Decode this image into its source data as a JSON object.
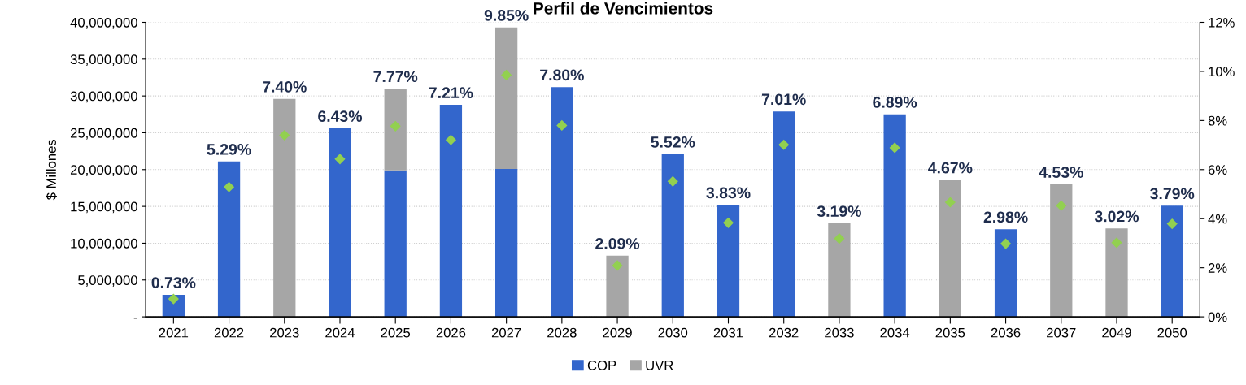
{
  "chart_data": {
    "type": "bar",
    "title": "Perfil de Vencimientos",
    "ylabel": "$ Millones",
    "stacked": true,
    "grid": "y",
    "legend": "bottom",
    "categories": [
      "2021",
      "2022",
      "2023",
      "2024",
      "2025",
      "2026",
      "2027",
      "2028",
      "2029",
      "2030",
      "2031",
      "2032",
      "2033",
      "2034",
      "2035",
      "2036",
      "2037",
      "2049",
      "2050"
    ],
    "ylim": [
      0,
      40000000
    ],
    "yticks": [
      {
        "value": 0,
        "label": "-"
      },
      {
        "value": 5000000,
        "label": "5,000,000"
      },
      {
        "value": 10000000,
        "label": "10,000,000"
      },
      {
        "value": 15000000,
        "label": "15,000,000"
      },
      {
        "value": 20000000,
        "label": "20,000,000"
      },
      {
        "value": 25000000,
        "label": "25,000,000"
      },
      {
        "value": 30000000,
        "label": "30,000,000"
      },
      {
        "value": 35000000,
        "label": "35,000,000"
      },
      {
        "value": 40000000,
        "label": "40,000,000"
      }
    ],
    "y2lim": [
      0,
      12
    ],
    "y2ticks": [
      {
        "value": 0,
        "label": "0%"
      },
      {
        "value": 2,
        "label": "2%"
      },
      {
        "value": 4,
        "label": "4%"
      },
      {
        "value": 6,
        "label": "6%"
      },
      {
        "value": 8,
        "label": "8%"
      },
      {
        "value": 10,
        "label": "10%"
      },
      {
        "value": 12,
        "label": "12%"
      }
    ],
    "series": [
      {
        "name": "COP",
        "color": "#3366cc",
        "values": [
          3000000,
          21100000,
          null,
          25600000,
          19900000,
          28800000,
          20100000,
          31200000,
          null,
          22100000,
          15200000,
          27900000,
          null,
          27500000,
          null,
          11900000,
          null,
          null,
          15100000
        ]
      },
      {
        "name": "UVR",
        "color": "#a6a6a6",
        "values": [
          null,
          null,
          29600000,
          null,
          11100000,
          null,
          19200000,
          null,
          8300000,
          null,
          null,
          null,
          12700000,
          null,
          18600000,
          null,
          18000000,
          12000000,
          null
        ]
      },
      {
        "type": "scatter",
        "axis": "y2",
        "marker": "diamond",
        "color": "#92d050",
        "values": [
          0.73,
          5.29,
          7.4,
          6.43,
          7.77,
          7.21,
          9.85,
          7.8,
          2.09,
          5.52,
          3.83,
          7.01,
          3.19,
          6.89,
          4.67,
          2.98,
          4.53,
          3.02,
          3.79
        ],
        "value_labels": [
          "0.73%",
          "5.29%",
          "7.40%",
          "6.43%",
          "7.77%",
          "7.21%",
          "9.85%",
          "7.80%",
          "2.09%",
          "5.52%",
          "3.83%",
          "7.01%",
          "3.19%",
          "6.89%",
          "4.67%",
          "2.98%",
          "4.53%",
          "3.02%",
          "3.79%"
        ]
      }
    ]
  }
}
